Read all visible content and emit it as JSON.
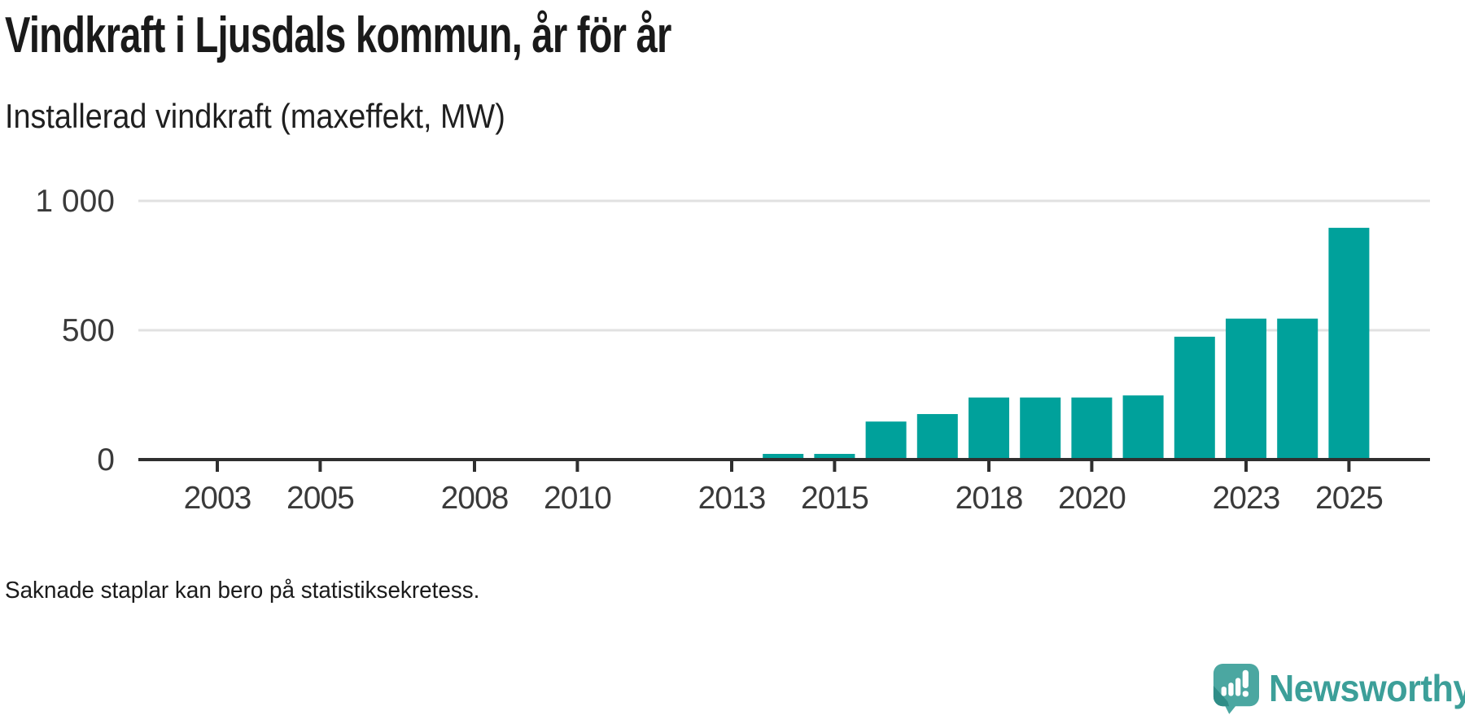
{
  "header": {
    "title": "Vindkraft i Ljusdals kommun, år för år",
    "subtitle": "Installerad vindkraft (maxeffekt, MW)"
  },
  "chart_data": {
    "type": "bar",
    "title": "Vindkraft i Ljusdals kommun, år för år",
    "subtitle": "Installerad vindkraft (maxeffekt, MW)",
    "unit": "MW",
    "x": [
      2014,
      2015,
      2016,
      2017,
      2018,
      2019,
      2020,
      2021,
      2022,
      2023,
      2024,
      2025
    ],
    "values": [
      22,
      22,
      147,
      176,
      240,
      240,
      240,
      248,
      475,
      545,
      545,
      896
    ],
    "x_ticks": [
      2003,
      2005,
      2008,
      2010,
      2013,
      2015,
      2018,
      2020,
      2023,
      2025
    ],
    "y_ticks": [
      {
        "value": 0,
        "label": "0"
      },
      {
        "value": 500,
        "label": "500"
      },
      {
        "value": 1000,
        "label": "1 000"
      }
    ],
    "xlim": [
      2001.5,
      2026.5
    ],
    "ylim": [
      0,
      1000
    ],
    "grid": "horizontal",
    "legend": "none",
    "bar_color": "#00a19b",
    "note": "Missing years 2002–2013 have no bars"
  },
  "footer": {
    "note": "Saknade staplar kan bero på statistiksekretess.",
    "brand": "Newsworthy"
  },
  "colors": {
    "bar": "#00a19b",
    "axis": "#2f2f2f",
    "grid": "#e1e1e1",
    "tick_label": "#3a3a3a",
    "text": "#1b1b1b",
    "brand_text": "#3c9f99",
    "brand_bubble": "#4ba7a1",
    "brand_bubble_fold": "#2f8d87",
    "background": "#ffffff"
  }
}
